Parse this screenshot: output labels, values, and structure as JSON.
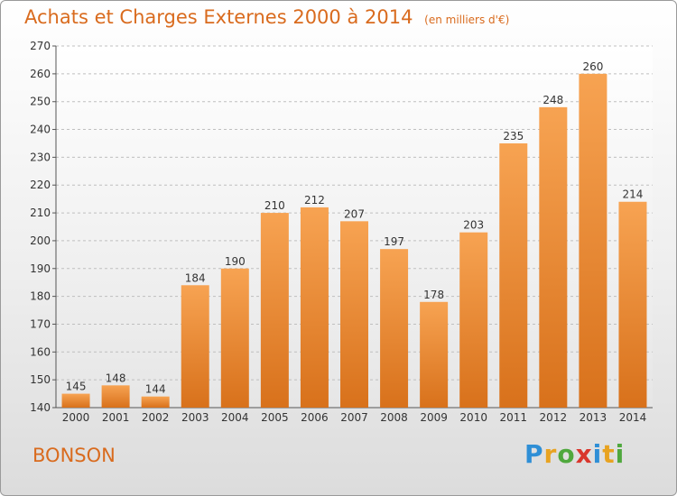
{
  "chart_data": {
    "type": "bar",
    "title": "Achats et Charges Externes 2000 à 2014",
    "subtitle": "(en milliers d'€)",
    "categories": [
      "2000",
      "2001",
      "2002",
      "2003",
      "2004",
      "2005",
      "2006",
      "2007",
      "2008",
      "2009",
      "2010",
      "2011",
      "2012",
      "2013",
      "2014"
    ],
    "values": [
      145,
      148,
      144,
      184,
      190,
      210,
      212,
      207,
      197,
      178,
      203,
      235,
      248,
      260,
      214
    ],
    "ylim": [
      140,
      270
    ],
    "yticks": [
      140,
      150,
      160,
      170,
      180,
      190,
      200,
      210,
      220,
      230,
      240,
      250,
      260,
      270
    ],
    "grid": true,
    "data_labels": true,
    "bar_color": "#f0903a"
  },
  "footer": {
    "location": "BONSON",
    "logo_letters": [
      "P",
      "r",
      "o",
      "x",
      "i",
      "t",
      "i"
    ],
    "logo_colors": [
      "#2f8fd6",
      "#e8a321",
      "#4fa83d",
      "#d9362c",
      "#2f8fd6",
      "#e8a321",
      "#4fa83d"
    ]
  },
  "colors": {
    "accent": "#d96b1e"
  }
}
